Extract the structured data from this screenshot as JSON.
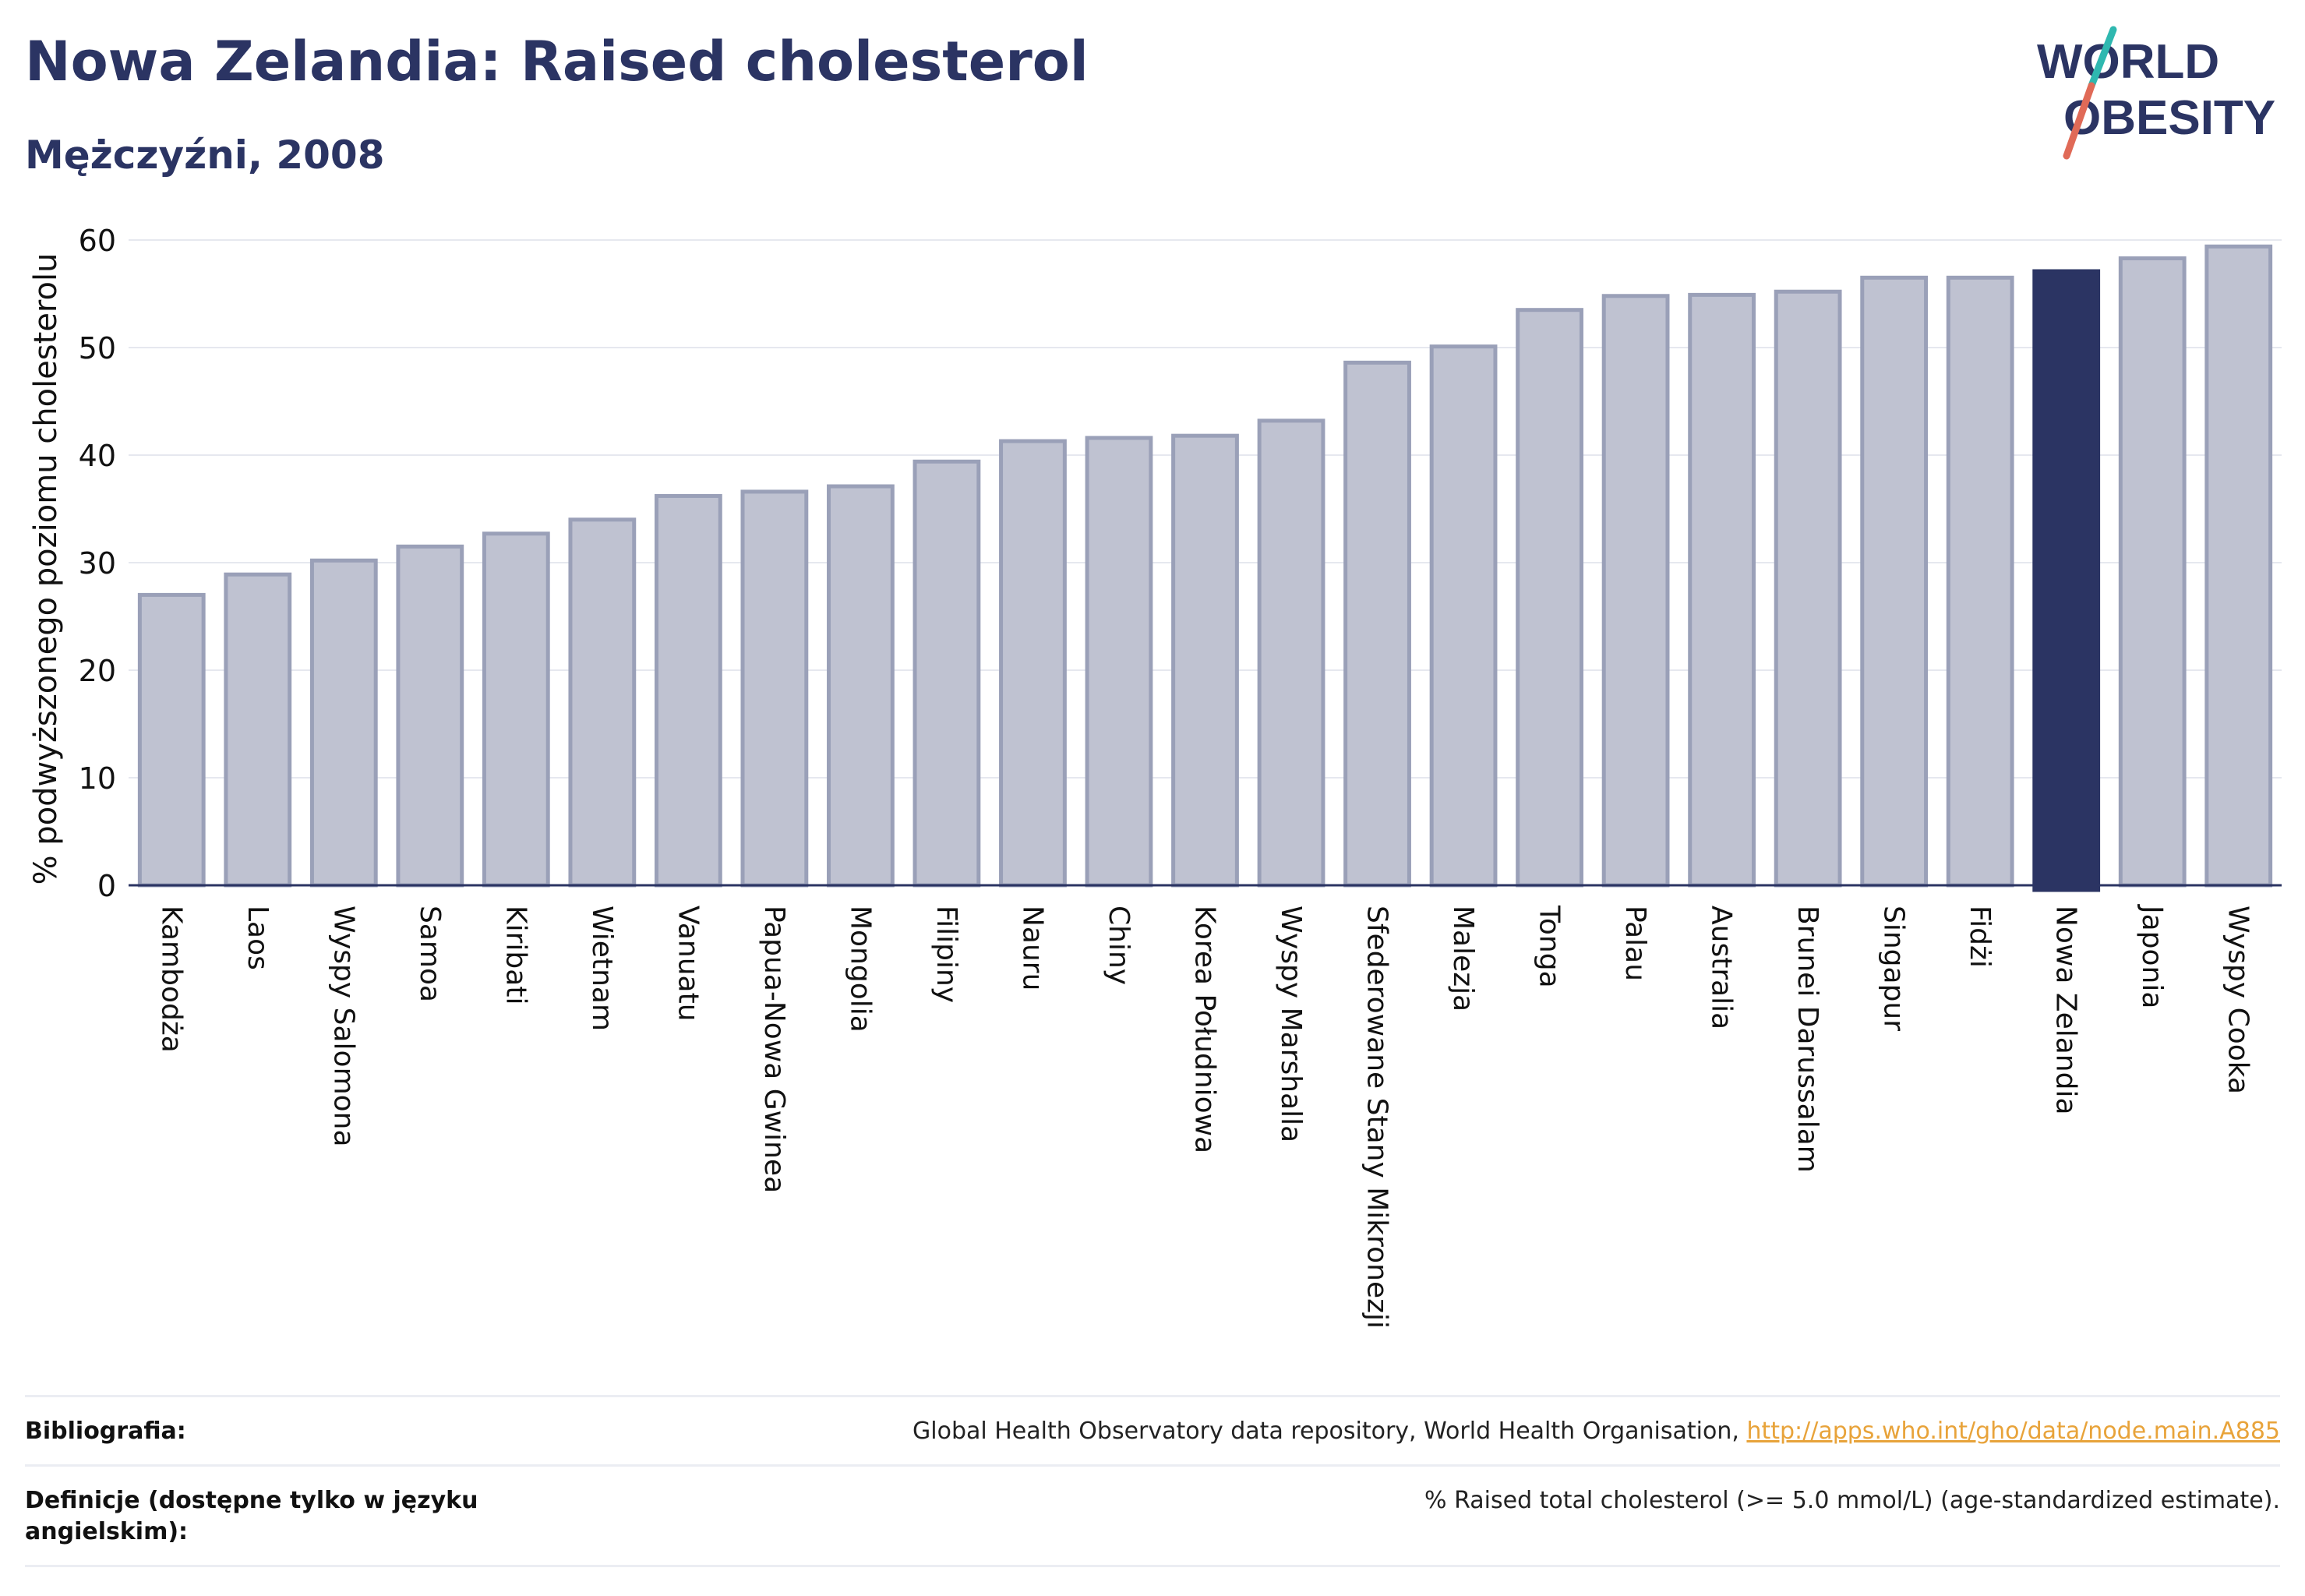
{
  "header": {
    "title": "Nowa Zelandia: Raised cholesterol",
    "subtitle": "Mężczyźni, 2008"
  },
  "logo": {
    "line1": "WORLD",
    "line2": "OBESITY",
    "accent_teal": "#2fb8b0",
    "accent_red": "#e06a57"
  },
  "colors": {
    "bar": "#bfc2d1",
    "bar_stroke": "#9aa0b8",
    "highlight": "#2b3463",
    "axis": "#2b3463",
    "grid": "#e6e8ef"
  },
  "chart_data": {
    "type": "bar",
    "ylabel": "% podwyższonego poziomu cholesterolu",
    "xlabel": "",
    "ylim": [
      0,
      60
    ],
    "yticks": [
      0,
      10,
      20,
      30,
      40,
      50,
      60
    ],
    "grid": true,
    "highlight": "Nowa Zelandia",
    "categories": [
      "Kambodża",
      "Laos",
      "Wyspy Salomona",
      "Samoa",
      "Kiribati",
      "Wietnam",
      "Vanuatu",
      "Papua-Nowa Gwinea",
      "Mongolia",
      "Filipiny",
      "Nauru",
      "Chiny",
      "Korea Południowa",
      "Wyspy Marshalla",
      "Sfederowane Stany Mikronezji",
      "Malezja",
      "Tonga",
      "Palau",
      "Australia",
      "Brunei Darussalam",
      "Singapur",
      "Fidżi",
      "Nowa Zelandia",
      "Japonia",
      "Wyspy Cooka"
    ],
    "values": [
      27.0,
      28.9,
      30.2,
      31.5,
      32.7,
      34.0,
      36.2,
      36.6,
      37.1,
      39.4,
      41.3,
      41.6,
      41.8,
      43.2,
      48.6,
      50.1,
      53.5,
      54.8,
      54.9,
      55.2,
      56.5,
      56.5,
      57.1,
      58.3,
      59.4
    ]
  },
  "footer": {
    "bibliography_label": "Bibliografia:",
    "bibliography_text": "Global Health Observatory data repository, World Health Organisation, ",
    "bibliography_link": "http://apps.who.int/gho/data/node.main.A885",
    "definition_label": "Definicje (dostępne tylko w języku angielskim):",
    "definition_text": "% Raised total cholesterol (>= 5.0 mmol/L) (age-standardized estimate)."
  }
}
